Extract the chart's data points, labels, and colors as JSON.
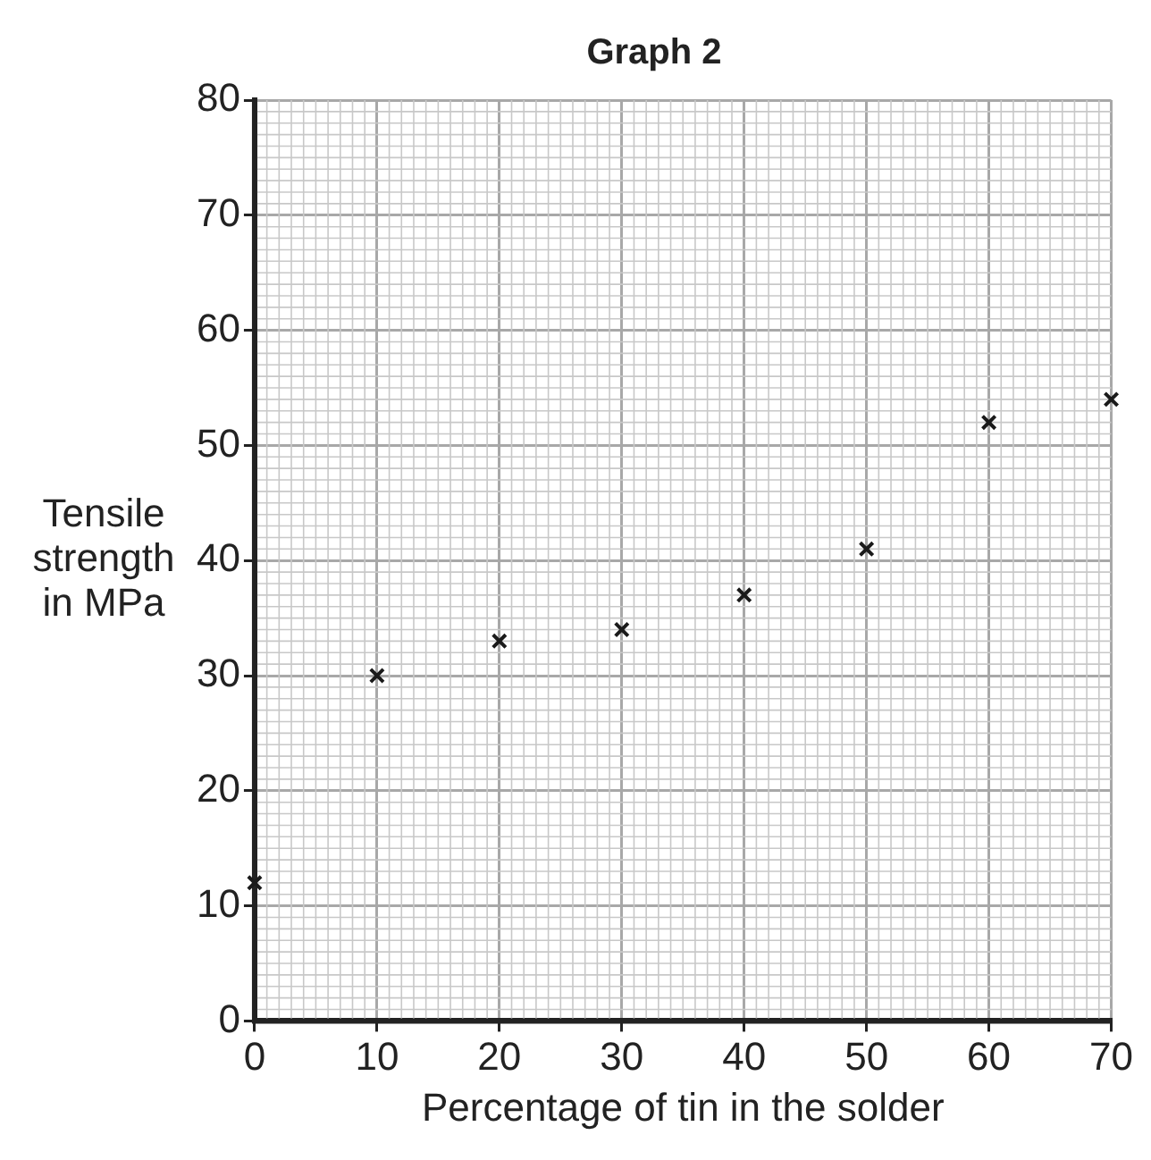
{
  "chart_data": {
    "type": "scatter",
    "title": "Graph 2",
    "xlabel": "Percentage of tin in the solder",
    "ylabel": "Tensile strength in MPa",
    "x": [
      0,
      10,
      20,
      30,
      40,
      50,
      60,
      70
    ],
    "series": [
      {
        "color": "#1a1a1a",
        "values": [
          12,
          30,
          33,
          34,
          37,
          41,
          52,
          54
        ]
      }
    ],
    "xlim": [
      0,
      70
    ],
    "xticks": [
      0,
      10,
      20,
      30,
      40,
      50,
      60,
      70
    ],
    "ylim": [
      0,
      80
    ],
    "yticks": [
      0,
      10,
      20,
      30,
      40,
      50,
      60,
      70,
      80
    ],
    "grid": true,
    "marker": "cross",
    "legend": false
  }
}
